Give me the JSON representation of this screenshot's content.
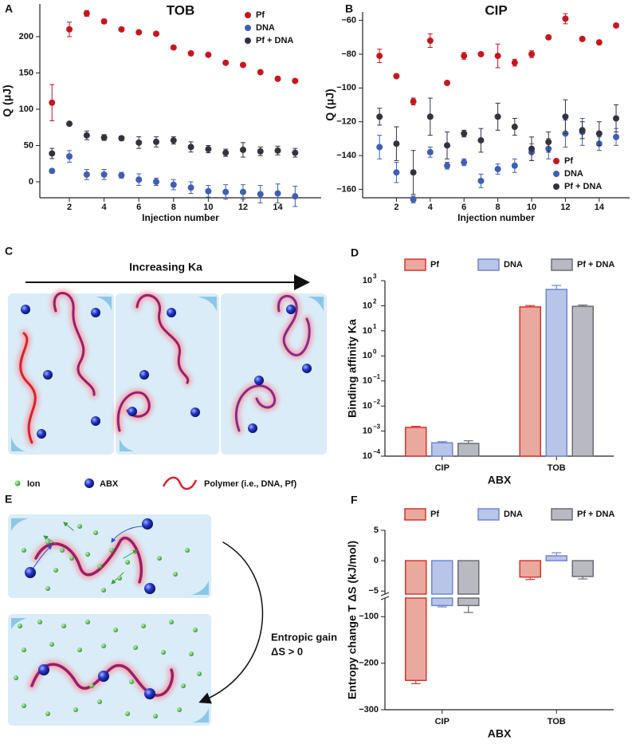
{
  "panel_labels": [
    "A",
    "B",
    "C",
    "D",
    "E",
    "F"
  ],
  "schematic": {
    "c_arrow_label": "Increasing Ka",
    "legend": [
      "Ion",
      "ABX",
      "Polymer (i.e., DNA, Pf)"
    ],
    "e_arrow_label": [
      "Entropic gain",
      "ΔS > 0"
    ]
  },
  "chart_data": [
    {
      "type": "scatter",
      "title": "TOB",
      "xlabel": "Injection number",
      "ylabel": "Q (μJ)",
      "x": [
        1,
        2,
        3,
        4,
        5,
        6,
        7,
        8,
        9,
        10,
        11,
        12,
        13,
        14,
        15
      ],
      "xlim": [
        0.3,
        16.5
      ],
      "xticks": [
        2,
        4,
        6,
        8,
        10,
        12,
        14
      ],
      "ylim": [
        -22,
        245
      ],
      "yticks": [
        0,
        50,
        100,
        150,
        200
      ],
      "legend": "upper right",
      "series": [
        {
          "name": "Pf",
          "color": "#c8161d",
          "values": [
            109,
            210,
            232,
            221,
            210,
            206,
            204,
            185,
            177,
            175,
            164,
            161,
            151,
            142,
            139
          ],
          "errors": [
            25,
            10,
            4,
            3,
            2,
            2,
            2,
            2,
            2,
            2,
            2,
            2,
            2,
            2,
            2
          ]
        },
        {
          "name": "DNA",
          "color": "#3f5fb5",
          "values": [
            15,
            35,
            10,
            10,
            9,
            3,
            0,
            -4,
            -8,
            -13,
            -14,
            -14,
            -17,
            -16,
            -20
          ],
          "errors": [
            3,
            8,
            7,
            7,
            4,
            8,
            5,
            7,
            8,
            8,
            10,
            10,
            12,
            13,
            14
          ]
        },
        {
          "name": "Pf + DNA",
          "color": "#33333f",
          "values": [
            39,
            80,
            64,
            61,
            60,
            54,
            55,
            57,
            48,
            45,
            40,
            44,
            42,
            43,
            40
          ],
          "errors": [
            7,
            2,
            6,
            4,
            3,
            8,
            7,
            5,
            7,
            5,
            5,
            10,
            6,
            6,
            6
          ]
        }
      ]
    },
    {
      "type": "scatter",
      "title": "CIP",
      "xlabel": "Injection number",
      "ylabel": "Q (μJ)",
      "x": [
        1,
        2,
        3,
        4,
        5,
        6,
        7,
        8,
        9,
        10,
        11,
        12,
        13,
        14,
        15
      ],
      "xlim": [
        0,
        15.8
      ],
      "xticks": [
        2,
        4,
        6,
        8,
        10,
        12,
        14
      ],
      "ylim": [
        -165,
        -55
      ],
      "yticks": [
        {
          "value": -60,
          "label": "−60"
        },
        {
          "value": -80,
          "label": "−80"
        },
        {
          "value": -100,
          "label": "−100"
        },
        {
          "value": -120,
          "label": "−120"
        },
        {
          "value": -140,
          "label": "−140"
        },
        {
          "value": -160,
          "label": "−160"
        }
      ],
      "legend": "lower right",
      "series": [
        {
          "name": "Pf",
          "color": "#c8161d",
          "values": [
            -81,
            -93,
            -108,
            -72,
            -97,
            -81,
            -80,
            -81,
            -85,
            -80,
            -70,
            -59,
            -71,
            -73,
            -63
          ],
          "errors": [
            4,
            1,
            2,
            4,
            1,
            2,
            1,
            7,
            2,
            2,
            1,
            3,
            1,
            1,
            1
          ]
        },
        {
          "name": "DNA",
          "color": "#3f5fb5",
          "values": [
            -135,
            -150,
            -166,
            -138,
            -146,
            -144,
            -155,
            -148,
            -146,
            -138,
            -136,
            -127,
            -126,
            -133,
            -129
          ],
          "errors": [
            7,
            6,
            2,
            3,
            2,
            2,
            4,
            3,
            4,
            5,
            6,
            8,
            8,
            4,
            5
          ]
        },
        {
          "name": "Pf + DNA",
          "color": "#33333f",
          "values": [
            -117,
            -133,
            -150,
            -117,
            -134,
            -127,
            -131,
            -117,
            -123,
            -136,
            -132,
            -117,
            -125,
            -127,
            -118
          ],
          "errors": [
            5,
            10,
            13,
            11,
            8,
            2,
            7,
            8,
            5,
            7,
            6,
            10,
            5,
            7,
            8
          ]
        }
      ]
    },
    {
      "type": "bar",
      "xlabel": "ABX",
      "ylabel": "Binding affinity Ka",
      "log": true,
      "categories": [
        "CIP",
        "TOB"
      ],
      "ylim": [
        0.0001,
        1000
      ],
      "legend": "top",
      "yticks": [
        {
          "value": 0.0001,
          "label": "10",
          "exponent": "−4"
        },
        {
          "value": 0.001,
          "label": "10",
          "exponent": "−3"
        },
        {
          "value": 0.01,
          "label": "10",
          "exponent": "−2"
        },
        {
          "value": 0.1,
          "label": "10",
          "exponent": "−1"
        },
        {
          "value": 1,
          "label": "10",
          "exponent": "0"
        },
        {
          "value": 10,
          "label": "10",
          "exponent": "1"
        },
        {
          "value": 100,
          "label": "10",
          "exponent": "2"
        },
        {
          "value": 1000,
          "label": "10",
          "exponent": "3"
        }
      ],
      "series": [
        {
          "name": "Pf",
          "color": "#d9342b",
          "fill": "#e9a99f",
          "values": [
            0.0014,
            90
          ],
          "errors": [
            0.00015,
            12
          ]
        },
        {
          "name": "DNA",
          "color": "#6f86cf",
          "fill": "#b9c5e8",
          "values": [
            0.00034,
            450
          ],
          "errors": [
            4e-05,
            200
          ]
        },
        {
          "name": "Pf + DNA",
          "color": "#6b6b73",
          "fill": "#b9b9c1",
          "values": [
            0.00032,
            95
          ],
          "errors": [
            9e-05,
            12
          ]
        }
      ]
    },
    {
      "type": "bar",
      "xlabel": "ABX",
      "ylabel": "Entropy change T ΔS (kJ/mol)",
      "categories": [
        "CIP",
        "TOB"
      ],
      "ylim": [
        -300,
        5
      ],
      "ybreak": [
        -60,
        -5.5
      ],
      "legend": "top",
      "yticks": [
        5,
        0,
        {
          "value": -5,
          "label": "−5"
        },
        {
          "value": -100,
          "label": "−100"
        },
        {
          "value": -200,
          "label": "−200"
        },
        {
          "value": -300,
          "label": "−300"
        }
      ],
      "series": [
        {
          "name": "Pf",
          "color": "#d9342b",
          "fill": "#e9a99f",
          "values": [
            -237,
            -2.7
          ],
          "errors": [
            7,
            0.4
          ]
        },
        {
          "name": "DNA",
          "color": "#6f86cf",
          "fill": "#b9c5e8",
          "values": [
            -76,
            0.8
          ],
          "errors": [
            3,
            0.5
          ]
        },
        {
          "name": "Pf + DNA",
          "color": "#6b6b73",
          "fill": "#b9b9c1",
          "values": [
            -76,
            -2.6
          ],
          "errors": [
            15,
            0.4
          ]
        }
      ]
    }
  ]
}
